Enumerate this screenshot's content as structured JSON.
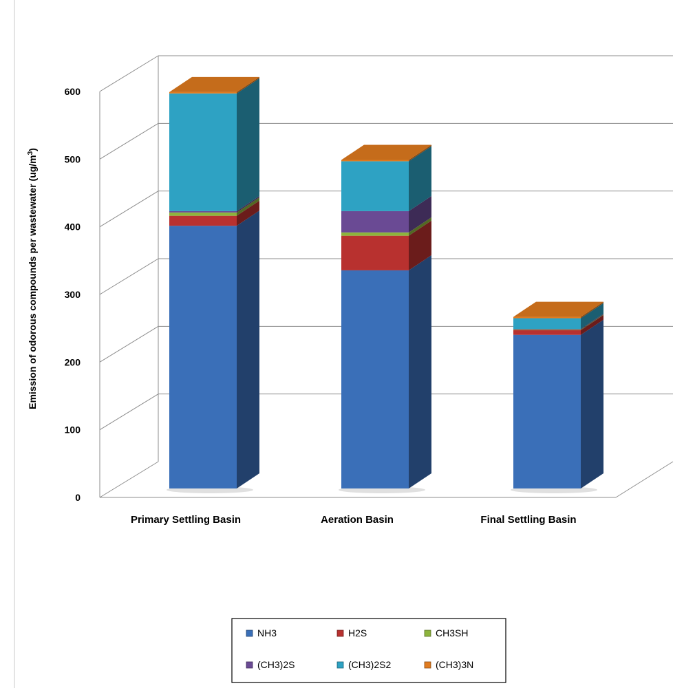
{
  "chart_data": {
    "type": "bar",
    "stacked": true,
    "three_d": true,
    "title": "",
    "xlabel": "",
    "ylabel": "Emission of odorous compounds per wastewater (ug/m",
    "ylabel_superscript": "3",
    "ylabel_close": ")",
    "ylim": [
      0,
      600
    ],
    "yticks": [
      "0",
      "100",
      "200",
      "300",
      "400",
      "500",
      "600"
    ],
    "grid": true,
    "legend_position": "bottom",
    "categories": [
      "Primary Settling Basin",
      "Aeration Basin",
      "Final Settling Basin"
    ],
    "series": [
      {
        "name": "NH3",
        "values": [
          395,
          328,
          231
        ],
        "color": "#3a6fb8"
      },
      {
        "name": "H2S",
        "values": [
          15,
          52,
          7
        ],
        "color": "#b8312f"
      },
      {
        "name": "CH3SH",
        "values": [
          5,
          5,
          1
        ],
        "color": "#8db43c"
      },
      {
        "name": "(CH3)2S",
        "values": [
          2,
          32,
          1
        ],
        "color": "#6a4a94"
      },
      {
        "name": "(CH3)2S2",
        "values": [
          177,
          75,
          16
        ],
        "color": "#2ea2c3"
      },
      {
        "name": "(CH3)3N",
        "values": [
          2,
          2,
          2
        ],
        "color": "#e07b1f"
      }
    ]
  }
}
